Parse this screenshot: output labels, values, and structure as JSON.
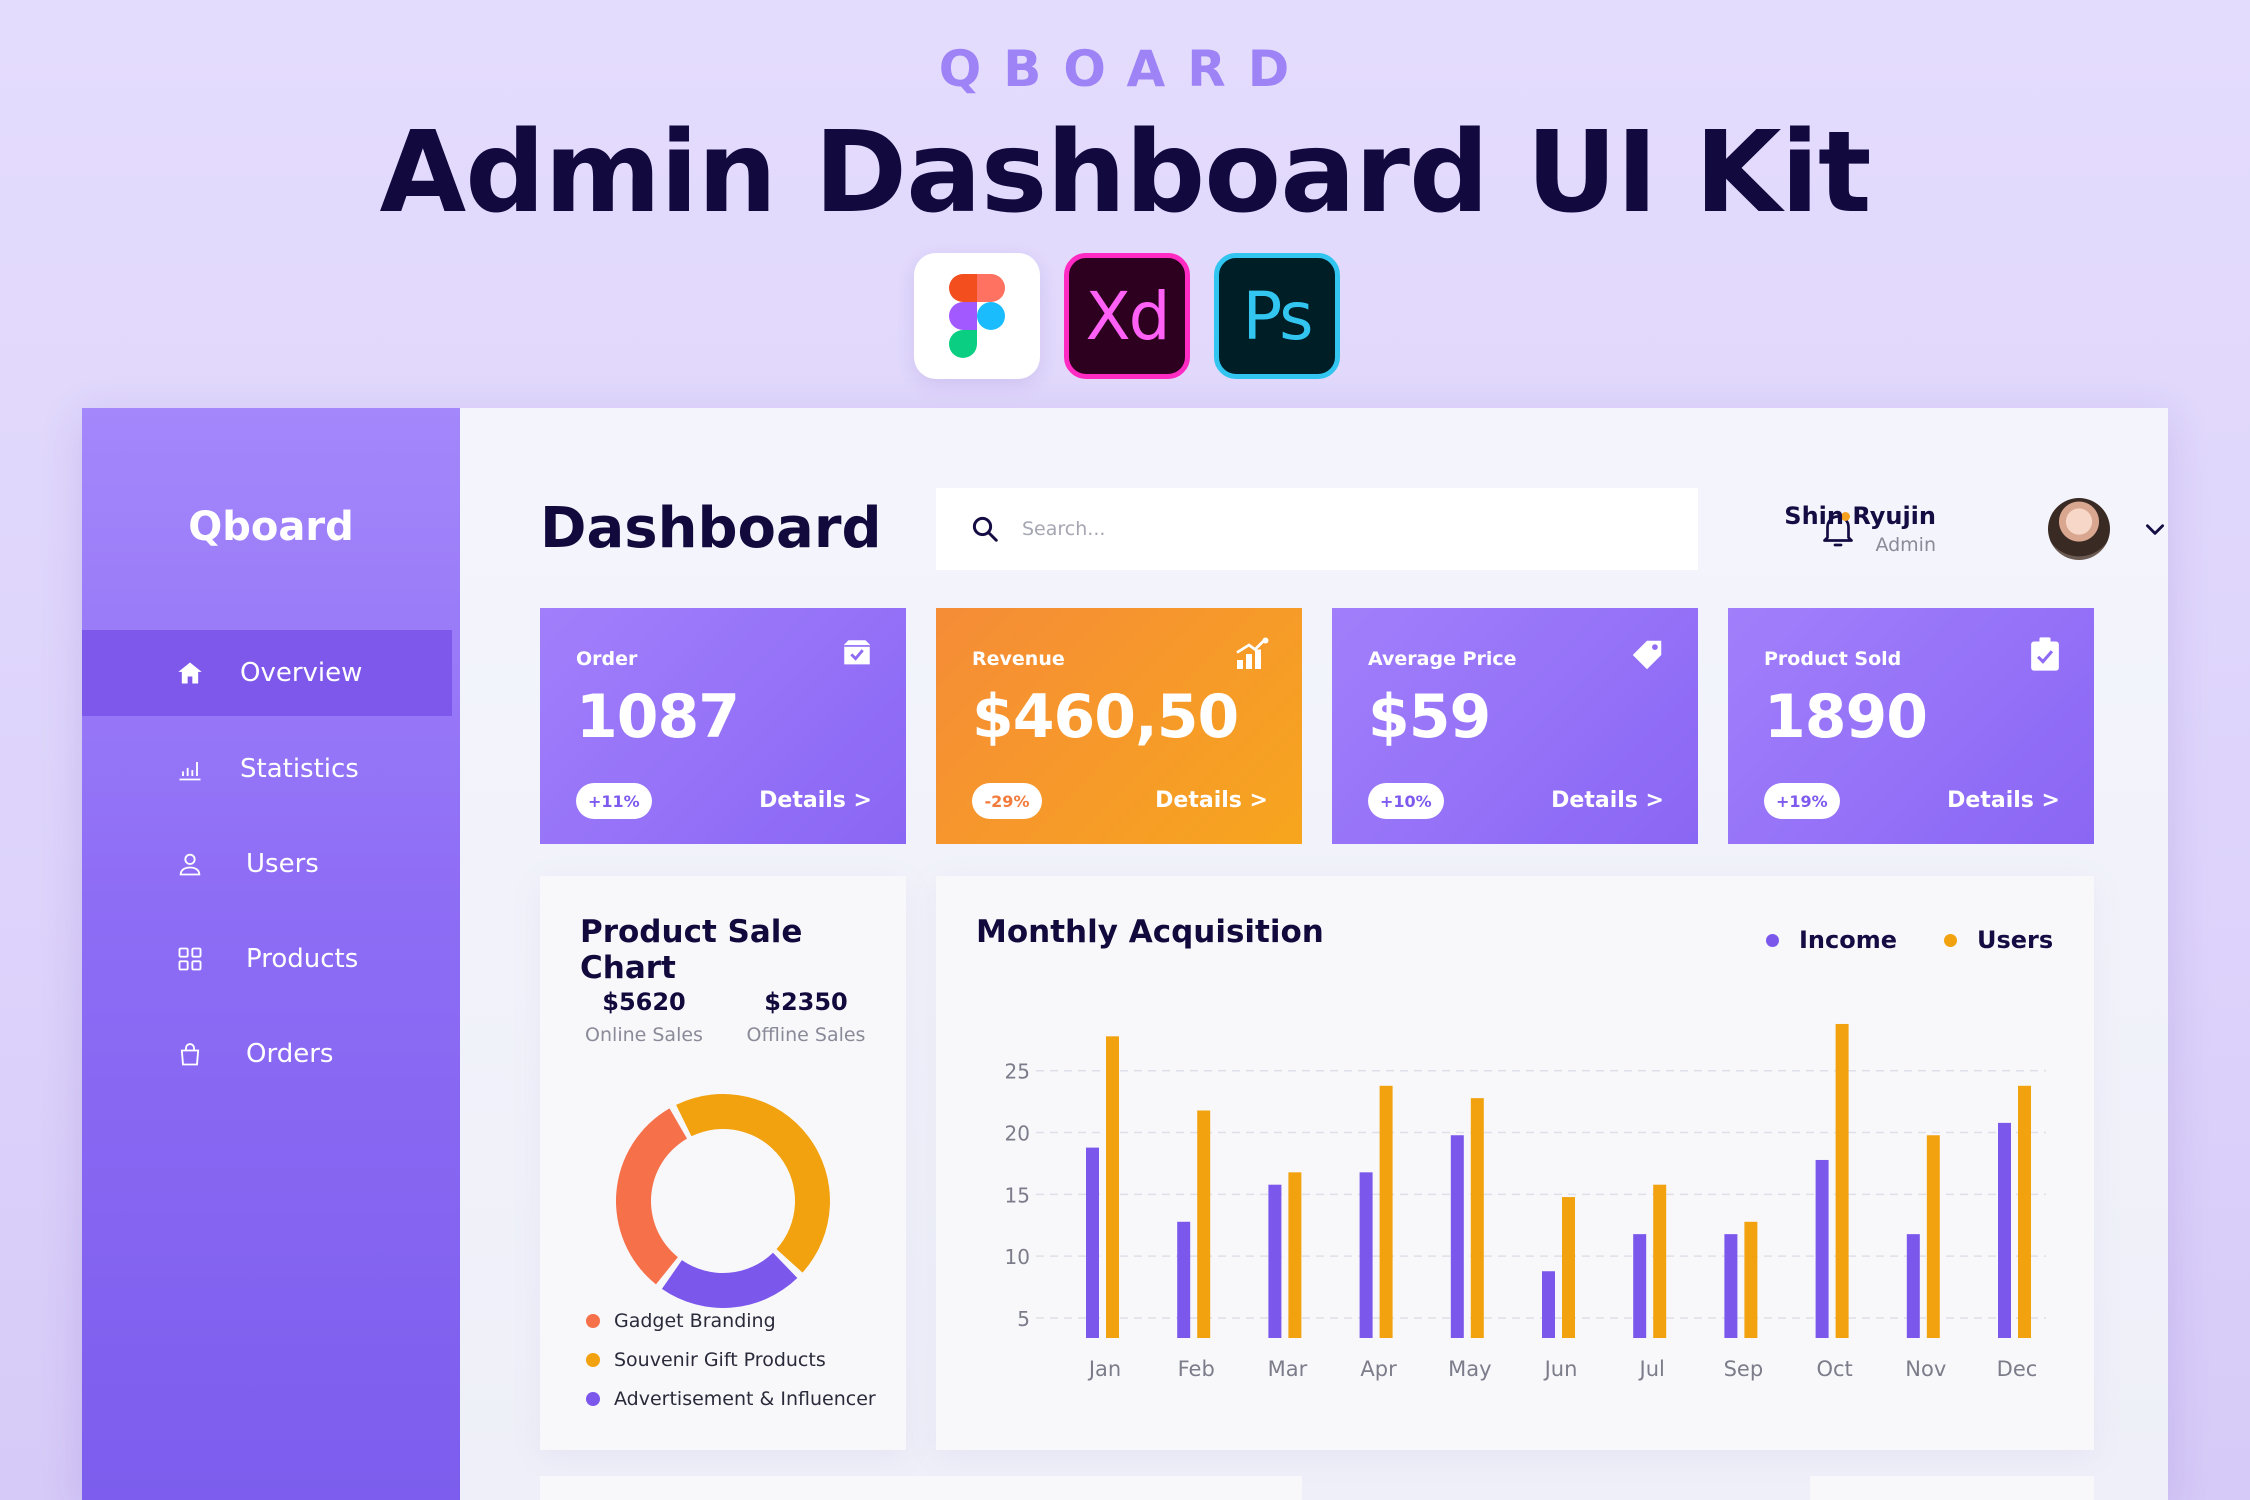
{
  "hero": {
    "kicker": "QBOARD",
    "title": "Admin Dashboard UI Kit",
    "tools": [
      "Xd",
      "Ps"
    ]
  },
  "sidebar": {
    "logo": "Qboard",
    "items": [
      {
        "label": "Overview",
        "icon": "home-icon",
        "active": true
      },
      {
        "label": "Statistics",
        "icon": "bar-chart-icon"
      },
      {
        "label": "Users",
        "icon": "user-icon"
      },
      {
        "label": "Products",
        "icon": "grid-icon"
      },
      {
        "label": "Orders",
        "icon": "bag-icon"
      }
    ]
  },
  "header": {
    "title": "Dashboard",
    "search_placeholder": "Search...",
    "user_name": "Shin Ryujin",
    "user_role": "Admin"
  },
  "cards": [
    {
      "label": "Order",
      "value": "1087",
      "change": "+11%",
      "details": "Details >",
      "icon": "box-icon"
    },
    {
      "label": "Revenue",
      "value": "$460,50",
      "change": "-29%",
      "details": "Details >",
      "icon": "growth-icon"
    },
    {
      "label": "Average Price",
      "value": "$59",
      "change": "+10%",
      "details": "Details >",
      "icon": "tag-icon"
    },
    {
      "label": "Product Sold",
      "value": "1890",
      "change": "+19%",
      "details": "Details >",
      "icon": "clipboard-check-icon"
    }
  ],
  "product_sale": {
    "title": "Product Sale Chart",
    "online_value": "$5620",
    "online_label": "Online Sales",
    "offline_value": "$2350",
    "offline_label": "Offline Sales",
    "legend": [
      {
        "label": "Gadget Branding",
        "color": "#f6704a"
      },
      {
        "label": "Souvenir Gift Products",
        "color": "#f2a20f"
      },
      {
        "label": "Advertisement & Influencer",
        "color": "#7b57ec"
      }
    ]
  },
  "monthly": {
    "title": "Monthly Acquisition",
    "legend_income": "Income",
    "legend_users": "Users"
  },
  "chart_data": [
    {
      "type": "pie",
      "labels": [
        "Souvenir Gift Products",
        "Advertisement & Influencer",
        "Gadget Branding"
      ],
      "values": [
        45,
        23,
        32
      ],
      "colors": [
        "#f2a20f",
        "#7b57ec",
        "#f6704a"
      ]
    },
    {
      "type": "bar",
      "categories": [
        "Jan",
        "Feb",
        "Mar",
        "Apr",
        "May",
        "Jun",
        "Jul",
        "Sep",
        "Oct",
        "Nov",
        "Dec"
      ],
      "series": [
        {
          "name": "Income",
          "color": "#7b57ec",
          "values": [
            18,
            12,
            15,
            16,
            19,
            8,
            11,
            11,
            17,
            11,
            20
          ]
        },
        {
          "name": "Users",
          "color": "#f2a20f",
          "values": [
            27,
            21,
            16,
            23,
            22,
            14,
            15,
            12,
            28,
            19,
            23
          ]
        }
      ],
      "yticks": [
        5,
        10,
        15,
        20,
        25
      ],
      "ylim": [
        5,
        27
      ],
      "grid": true,
      "legend": "top-right"
    }
  ]
}
